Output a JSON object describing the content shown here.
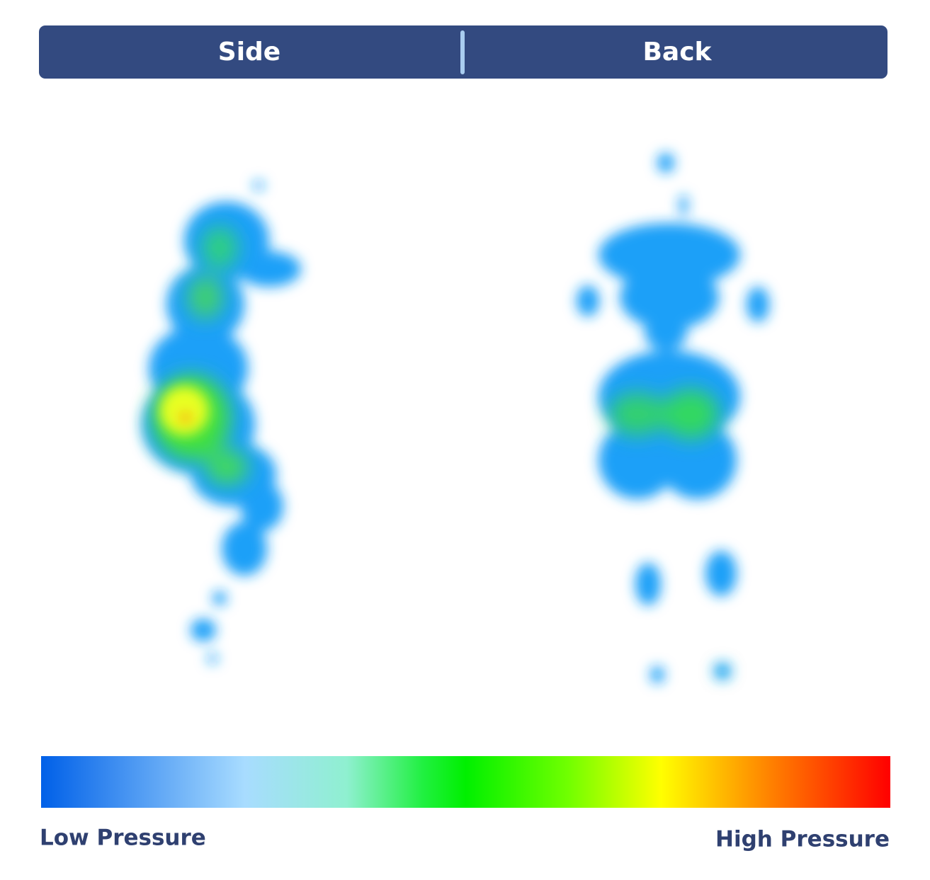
{
  "tabs": [
    "Side",
    "Back"
  ],
  "legend": {
    "low": "Low Pressure",
    "high": "High Pressure"
  }
}
